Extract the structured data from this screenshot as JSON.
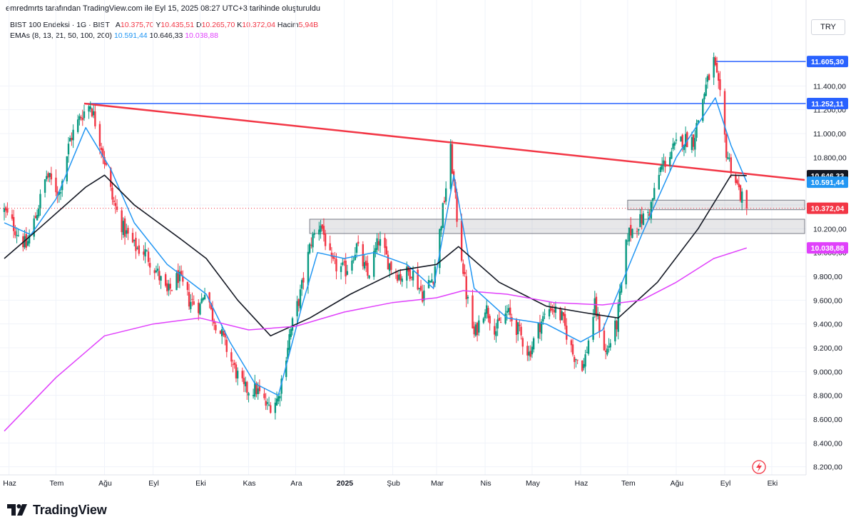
{
  "header": {
    "credit": "emredmrts tarafından TradingView.com ile Eyl 15, 2025 08:27 UTC+3 tarihinde oluşturuldu",
    "symbol": "BIST 100 Endeksi · 1G · BIST",
    "ohlc": {
      "open_label": "A",
      "open": "10.375,70",
      "high_label": "Y",
      "high": "10.435,51",
      "low_label": "D",
      "low": "10.265,70",
      "close_label": "K",
      "close": "10.372,04",
      "volume_label": "Hacim",
      "volume": "5,94B"
    },
    "ema_label": "EMAs (8, 13, 21, 50, 100, 200)",
    "ema_values": [
      "10.591,44",
      "10.646,33",
      "10.038,88"
    ]
  },
  "currency": "TRY",
  "brand": "TradingView",
  "colors": {
    "up": "#089981",
    "down": "#f23645",
    "ema_fast": "#2196f3",
    "ema_mid": "#131722",
    "ema_slow": "#e040fb",
    "trendline": "#f23645",
    "resistance": "#2962ff"
  },
  "chart_data": {
    "type": "candlestick",
    "y_tick_labels": [
      "8.200,00",
      "8.400,00",
      "8.600,00",
      "8.800,00",
      "9.000,00",
      "9.200,00",
      "9.400,00",
      "9.600,00",
      "9.800,00",
      "10.000,00",
      "10.200,00",
      "10.400,00",
      "10.600,00",
      "10.800,00",
      "11.000,00",
      "11.200,00",
      "11.400,00"
    ],
    "y_ticks": [
      8200,
      8400,
      8600,
      8800,
      9000,
      9200,
      9400,
      9600,
      9800,
      10000,
      10200,
      10400,
      10600,
      10800,
      11000,
      11200,
      11400
    ],
    "ylim": [
      8150,
      11750
    ],
    "x_tick_labels": [
      "Haz",
      "Tem",
      "Ağu",
      "Eyl",
      "Eki",
      "Kas",
      "Ara",
      "2025",
      "Şub",
      "Mar",
      "Nis",
      "May",
      "Haz",
      "Tem",
      "Ağu",
      "Eyl",
      "Eki"
    ],
    "x_tick_dates": [
      "2024-06-01",
      "2024-07-01",
      "2024-08-01",
      "2024-09-01",
      "2024-10-01",
      "2024-11-01",
      "2024-12-01",
      "2025-01-01",
      "2025-02-01",
      "2025-03-01",
      "2025-04-01",
      "2025-05-01",
      "2025-06-01",
      "2025-07-01",
      "2025-08-01",
      "2025-09-01",
      "2025-10-01"
    ],
    "xlim": [
      "2024-05-29",
      "2025-10-22"
    ],
    "grid": true,
    "price_path": [
      [
        "2024-05-29",
        10350
      ],
      [
        "2024-06-05",
        10200
      ],
      [
        "2024-06-12",
        10050
      ],
      [
        "2024-06-18",
        10300
      ],
      [
        "2024-06-25",
        10650
      ],
      [
        "2024-07-03",
        10500
      ],
      [
        "2024-07-10",
        10950
      ],
      [
        "2024-07-17",
        11150
      ],
      [
        "2024-07-23",
        11250
      ],
      [
        "2024-07-30",
        10900
      ],
      [
        "2024-08-06",
        10450
      ],
      [
        "2024-08-13",
        10200
      ],
      [
        "2024-08-20",
        10050
      ],
      [
        "2024-08-27",
        10000
      ],
      [
        "2024-09-03",
        9850
      ],
      [
        "2024-09-10",
        9650
      ],
      [
        "2024-09-17",
        9800
      ],
      [
        "2024-09-24",
        9600
      ],
      [
        "2024-10-01",
        9550
      ],
      [
        "2024-10-05",
        9750
      ],
      [
        "2024-10-08",
        9500
      ],
      [
        "2024-10-15",
        9300
      ],
      [
        "2024-10-22",
        9050
      ],
      [
        "2024-10-29",
        8850
      ],
      [
        "2024-11-06",
        8850
      ],
      [
        "2024-11-13",
        8700
      ],
      [
        "2024-11-20",
        8780
      ],
      [
        "2024-11-27",
        9300
      ],
      [
        "2024-12-04",
        9650
      ],
      [
        "2024-12-11",
        10100
      ],
      [
        "2024-12-17",
        10250
      ],
      [
        "2024-12-24",
        9900
      ],
      [
        "2025-01-02",
        9850
      ],
      [
        "2025-01-09",
        10050
      ],
      [
        "2025-01-16",
        9800
      ],
      [
        "2025-01-23",
        10100
      ],
      [
        "2025-01-30",
        9900
      ],
      [
        "2025-02-06",
        9800
      ],
      [
        "2025-02-13",
        9850
      ],
      [
        "2025-02-20",
        9650
      ],
      [
        "2025-02-27",
        9800
      ],
      [
        "2025-03-06",
        10450
      ],
      [
        "2025-03-10",
        10850
      ],
      [
        "2025-03-14",
        10300
      ],
      [
        "2025-03-20",
        9650
      ],
      [
        "2025-03-25",
        9300
      ],
      [
        "2025-04-01",
        9550
      ],
      [
        "2025-04-08",
        9350
      ],
      [
        "2025-04-15",
        9500
      ],
      [
        "2025-04-22",
        9350
      ],
      [
        "2025-04-29",
        9150
      ],
      [
        "2025-05-06",
        9400
      ],
      [
        "2025-05-13",
        9550
      ],
      [
        "2025-05-20",
        9450
      ],
      [
        "2025-05-27",
        9150
      ],
      [
        "2025-06-03",
        9050
      ],
      [
        "2025-06-10",
        9550
      ],
      [
        "2025-06-17",
        9150
      ],
      [
        "2025-06-24",
        9400
      ],
      [
        "2025-07-01",
        10150
      ],
      [
        "2025-07-08",
        10250
      ],
      [
        "2025-07-15",
        10350
      ],
      [
        "2025-07-22",
        10700
      ],
      [
        "2025-07-29",
        10850
      ],
      [
        "2025-08-05",
        10950
      ],
      [
        "2025-08-12",
        10950
      ],
      [
        "2025-08-19",
        11350
      ],
      [
        "2025-08-25",
        11605.3
      ],
      [
        "2025-08-29",
        11300
      ],
      [
        "2025-09-02",
        10850
      ],
      [
        "2025-09-08",
        10600
      ],
      [
        "2025-09-12",
        10450
      ],
      [
        "2025-09-15",
        10372.04
      ]
    ],
    "series": [
      {
        "name": "EMA",
        "label_value": "10.591,44",
        "color": "#2196f3",
        "points": [
          [
            "2024-05-29",
            10250
          ],
          [
            "2024-06-15",
            10150
          ],
          [
            "2024-07-01",
            10450
          ],
          [
            "2024-07-20",
            11050
          ],
          [
            "2024-08-05",
            10700
          ],
          [
            "2024-08-20",
            10250
          ],
          [
            "2024-09-10",
            9900
          ],
          [
            "2024-10-05",
            9650
          ],
          [
            "2024-10-20",
            9250
          ],
          [
            "2024-11-05",
            8900
          ],
          [
            "2024-11-20",
            8800
          ],
          [
            "2024-12-05",
            9550
          ],
          [
            "2024-12-15",
            10000
          ],
          [
            "2025-01-01",
            9950
          ],
          [
            "2025-01-20",
            10000
          ],
          [
            "2025-02-10",
            9900
          ],
          [
            "2025-02-27",
            9700
          ],
          [
            "2025-03-12",
            10650
          ],
          [
            "2025-03-25",
            9700
          ],
          [
            "2025-04-15",
            9450
          ],
          [
            "2025-05-10",
            9400
          ],
          [
            "2025-06-01",
            9250
          ],
          [
            "2025-06-15",
            9350
          ],
          [
            "2025-07-10",
            10150
          ],
          [
            "2025-08-01",
            10800
          ],
          [
            "2025-08-26",
            11300
          ],
          [
            "2025-09-05",
            10900
          ],
          [
            "2025-09-15",
            10591.44
          ]
        ]
      },
      {
        "name": "EMA",
        "label_value": "10.646,33",
        "color": "#131722",
        "points": [
          [
            "2024-05-29",
            9950
          ],
          [
            "2024-06-20",
            10200
          ],
          [
            "2024-07-20",
            10550
          ],
          [
            "2024-08-01",
            10650
          ],
          [
            "2024-08-20",
            10400
          ],
          [
            "2024-09-20",
            10100
          ],
          [
            "2024-10-05",
            9950
          ],
          [
            "2024-10-25",
            9600
          ],
          [
            "2024-11-15",
            9300
          ],
          [
            "2024-12-10",
            9450
          ],
          [
            "2025-01-05",
            9650
          ],
          [
            "2025-02-05",
            9850
          ],
          [
            "2025-03-01",
            9900
          ],
          [
            "2025-03-15",
            10050
          ],
          [
            "2025-04-10",
            9750
          ],
          [
            "2025-05-10",
            9550
          ],
          [
            "2025-06-01",
            9500
          ],
          [
            "2025-06-25",
            9450
          ],
          [
            "2025-07-20",
            9750
          ],
          [
            "2025-08-15",
            10200
          ],
          [
            "2025-09-05",
            10650
          ],
          [
            "2025-09-15",
            10646.33
          ]
        ]
      },
      {
        "name": "EMA",
        "label_value": "10.038,88",
        "color": "#e040fb",
        "points": [
          [
            "2024-05-29",
            8500
          ],
          [
            "2024-07-01",
            8950
          ],
          [
            "2024-08-01",
            9300
          ],
          [
            "2024-09-01",
            9400
          ],
          [
            "2024-10-01",
            9450
          ],
          [
            "2024-11-01",
            9350
          ],
          [
            "2024-12-01",
            9380
          ],
          [
            "2025-01-01",
            9500
          ],
          [
            "2025-02-01",
            9580
          ],
          [
            "2025-03-01",
            9620
          ],
          [
            "2025-03-18",
            9680
          ],
          [
            "2025-04-15",
            9650
          ],
          [
            "2025-05-15",
            9580
          ],
          [
            "2025-06-15",
            9560
          ],
          [
            "2025-07-10",
            9600
          ],
          [
            "2025-08-01",
            9750
          ],
          [
            "2025-08-25",
            9950
          ],
          [
            "2025-09-15",
            10038.88
          ]
        ]
      }
    ],
    "trendlines": [
      {
        "kind": "descending-trendline",
        "from": [
          "2024-07-19",
          11252.11
        ],
        "to": [
          "2025-10-22",
          10610
        ]
      }
    ],
    "horizontal_levels": [
      {
        "label": "11.605,30",
        "value": 11605.3,
        "from": "2025-08-25"
      },
      {
        "label": "11.252,11",
        "value": 11252.11,
        "from": "2024-07-19"
      }
    ],
    "zones": [
      {
        "from": "2024-12-10",
        "to": "2025-10-22",
        "low": 10160,
        "high": 10280
      },
      {
        "from": "2025-07-01",
        "to": "2025-10-22",
        "low": 10360,
        "high": 10440
      }
    ],
    "last_price": {
      "label": "10.372,04",
      "value": 10372.04
    },
    "price_labels": [
      {
        "label": "11.605,30",
        "value": 11605.3,
        "color": "#2962ff"
      },
      {
        "label": "11.252,11",
        "value": 11252.11,
        "color": "#2962ff"
      },
      {
        "label": "10.646,33",
        "value": 10646.33,
        "color": "#131722"
      },
      {
        "label": "10.591,44",
        "value": 10591.44,
        "color": "#2196f3"
      },
      {
        "label": "10.372,04",
        "value": 10372.04,
        "color": "#f23645"
      },
      {
        "label": "10.038,88",
        "value": 10038.88,
        "color": "#e040fb"
      }
    ]
  }
}
